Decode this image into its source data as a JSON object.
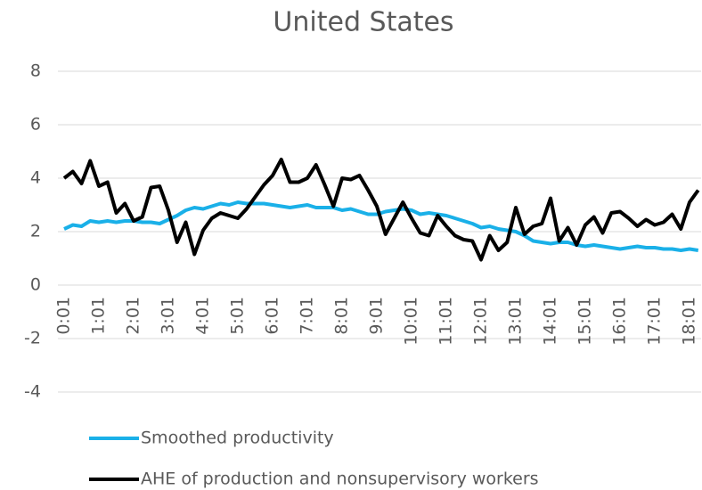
{
  "chart_data": {
    "type": "line",
    "title": "United States",
    "categories": [
      "0:01",
      null,
      null,
      null,
      "1:01",
      null,
      null,
      null,
      "2:01",
      null,
      null,
      null,
      "3:01",
      null,
      null,
      null,
      "4:01",
      null,
      null,
      null,
      "5:01",
      null,
      null,
      null,
      "6:01",
      null,
      null,
      null,
      "7:01",
      null,
      null,
      null,
      "8:01",
      null,
      null,
      null,
      "9:01",
      null,
      null,
      null,
      "10:01",
      null,
      null,
      null,
      "11:01",
      null,
      null,
      null,
      "12:01",
      null,
      null,
      null,
      "13:01",
      null,
      null,
      null,
      "14:01",
      null,
      null,
      null,
      "15:01",
      null,
      null,
      null,
      "16:01",
      null,
      null,
      null,
      "17:01",
      null,
      null,
      null,
      "18:01",
      null
    ],
    "series": [
      {
        "name": "Smoothed productivity",
        "color": "#1ab0e8",
        "values": [
          2.1,
          2.25,
          2.2,
          2.4,
          2.35,
          2.4,
          2.35,
          2.4,
          2.4,
          2.35,
          2.35,
          2.3,
          2.45,
          2.6,
          2.8,
          2.9,
          2.85,
          2.95,
          3.05,
          3.0,
          3.1,
          3.05,
          3.05,
          3.05,
          3.0,
          2.95,
          2.9,
          2.95,
          3.0,
          2.9,
          2.9,
          2.9,
          2.8,
          2.85,
          2.75,
          2.65,
          2.65,
          2.75,
          2.8,
          2.85,
          2.8,
          2.65,
          2.7,
          2.65,
          2.6,
          2.5,
          2.4,
          2.3,
          2.15,
          2.2,
          2.1,
          2.05,
          2.0,
          1.85,
          1.65,
          1.6,
          1.55,
          1.6,
          1.6,
          1.5,
          1.45,
          1.5,
          1.45,
          1.4,
          1.35,
          1.4,
          1.45,
          1.4,
          1.4,
          1.35,
          1.35,
          1.3,
          1.35,
          1.3
        ]
      },
      {
        "name": "AHE of production and nonsupervisory workers",
        "color": "#000000",
        "values": [
          4.0,
          4.25,
          3.8,
          4.65,
          3.7,
          3.85,
          2.7,
          3.05,
          2.4,
          2.55,
          3.65,
          3.7,
          2.8,
          1.6,
          2.35,
          1.15,
          2.05,
          2.5,
          2.7,
          2.6,
          2.5,
          2.85,
          3.3,
          3.75,
          4.1,
          4.7,
          3.85,
          3.85,
          4.0,
          4.5,
          3.75,
          2.95,
          4.0,
          3.95,
          4.1,
          3.55,
          2.95,
          1.9,
          2.5,
          3.1,
          2.5,
          1.95,
          1.85,
          2.6,
          2.2,
          1.85,
          1.7,
          1.65,
          0.95,
          1.85,
          1.3,
          1.6,
          2.9,
          1.9,
          2.2,
          2.3,
          3.25,
          1.65,
          2.15,
          1.5,
          2.25,
          2.55,
          1.95,
          2.7,
          2.75,
          2.5,
          2.2,
          2.45,
          2.25,
          2.35,
          2.65,
          2.1,
          3.1,
          3.55
        ]
      }
    ],
    "ylim": [
      -4,
      8
    ],
    "yticks": [
      -4,
      -2,
      0,
      2,
      4,
      6,
      8
    ],
    "grid": true,
    "legend": "bottom"
  }
}
